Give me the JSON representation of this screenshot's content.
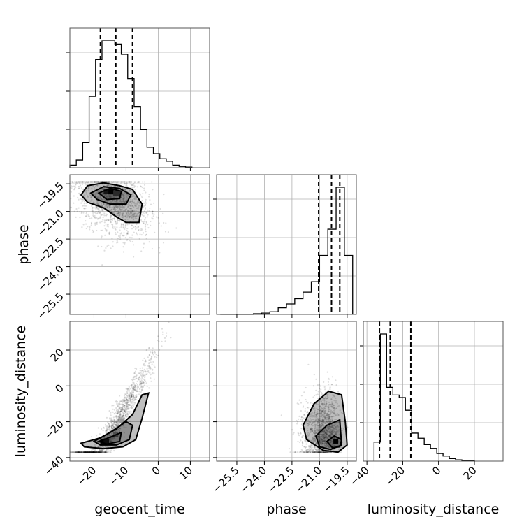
{
  "chart_data": {
    "type": "corner",
    "parameters": [
      "geocent_time",
      "phase",
      "luminosity_distance"
    ],
    "axis_labels": {
      "geocent_time": "geocent_time",
      "phase": "phase",
      "luminosity_distance": "luminosity_distance"
    },
    "ranges": {
      "geocent_time": [
        -27.5,
        16.0
      ],
      "phase": [
        -26.6,
        -19.0
      ],
      "luminosity_distance": [
        -42.0,
        36.0
      ]
    },
    "ticks": {
      "geocent_time": [
        -20,
        -10,
        0,
        10
      ],
      "phase": [
        -25.5,
        -24.0,
        -22.5,
        -21.0,
        -19.5
      ],
      "luminosity_distance": [
        -40,
        -20,
        0,
        20
      ]
    },
    "tick_labels": {
      "geocent_time": [
        "−20",
        "−10",
        "0",
        "10"
      ],
      "phase": [
        "−25.5",
        "−24.0",
        "−22.5",
        "−21.0",
        "−19.5"
      ],
      "luminosity_distance": [
        "−40",
        "−20",
        "0",
        "20"
      ]
    },
    "grid": true,
    "histograms": {
      "geocent_time": {
        "bin_edges": [
          -27.5,
          -25.5,
          -23.5,
          -21.5,
          -19.5,
          -17.5,
          -15.5,
          -13.5,
          -11.5,
          -9.5,
          -7.5,
          -5.5,
          -3.5,
          -1.5,
          0.5,
          2.5,
          4.5,
          6.5,
          8.5,
          10.5
        ],
        "counts": [
          2,
          6,
          20,
          56,
          85,
          100,
          100,
          97,
          89,
          70,
          48,
          30,
          16,
          11,
          7,
          5,
          2,
          1,
          0.5
        ],
        "quantiles": [
          -18.0,
          -13.2,
          -8.0
        ]
      },
      "phase": {
        "bin_edges": [
          -26.4,
          -25.95,
          -25.5,
          -25.05,
          -24.6,
          -24.15,
          -23.7,
          -23.25,
          -22.8,
          -22.35,
          -21.9,
          -21.45,
          -21.0,
          -20.55,
          -20.1,
          -19.65,
          -19.2
        ],
        "counts": [
          0,
          0,
          0,
          0,
          0.5,
          1,
          2,
          5,
          8,
          12,
          17,
          25,
          45,
          65,
          97,
          45
        ],
        "quantiles": [
          -21.05,
          -20.35,
          -19.9
        ]
      },
      "luminosity_distance": {
        "bin_edges": [
          -36.0,
          -32.5,
          -29.0,
          -25.5,
          -22.0,
          -18.5,
          -15.0,
          -11.5,
          -8.0,
          -4.5,
          -1.0,
          2.5,
          6.0,
          9.5,
          13.0,
          16.5,
          20.0
        ],
        "counts": [
          15,
          100,
          58,
          52,
          50,
          40,
          22,
          18,
          13,
          10,
          6,
          4,
          2,
          1,
          0.5,
          0.3
        ],
        "quantiles": [
          -33.0,
          -27.0,
          -15.5
        ]
      }
    },
    "scatter_centers": {
      "phase_vs_geocent_time": {
        "x_mean": -14,
        "y_mean": -20.2
      },
      "luminosity_distance_vs_geocent_time": {
        "x_mean": -15,
        "y_mean": -24
      },
      "luminosity_distance_vs_phase": {
        "x_mean": -20.3,
        "y_mean": -25
      }
    }
  }
}
